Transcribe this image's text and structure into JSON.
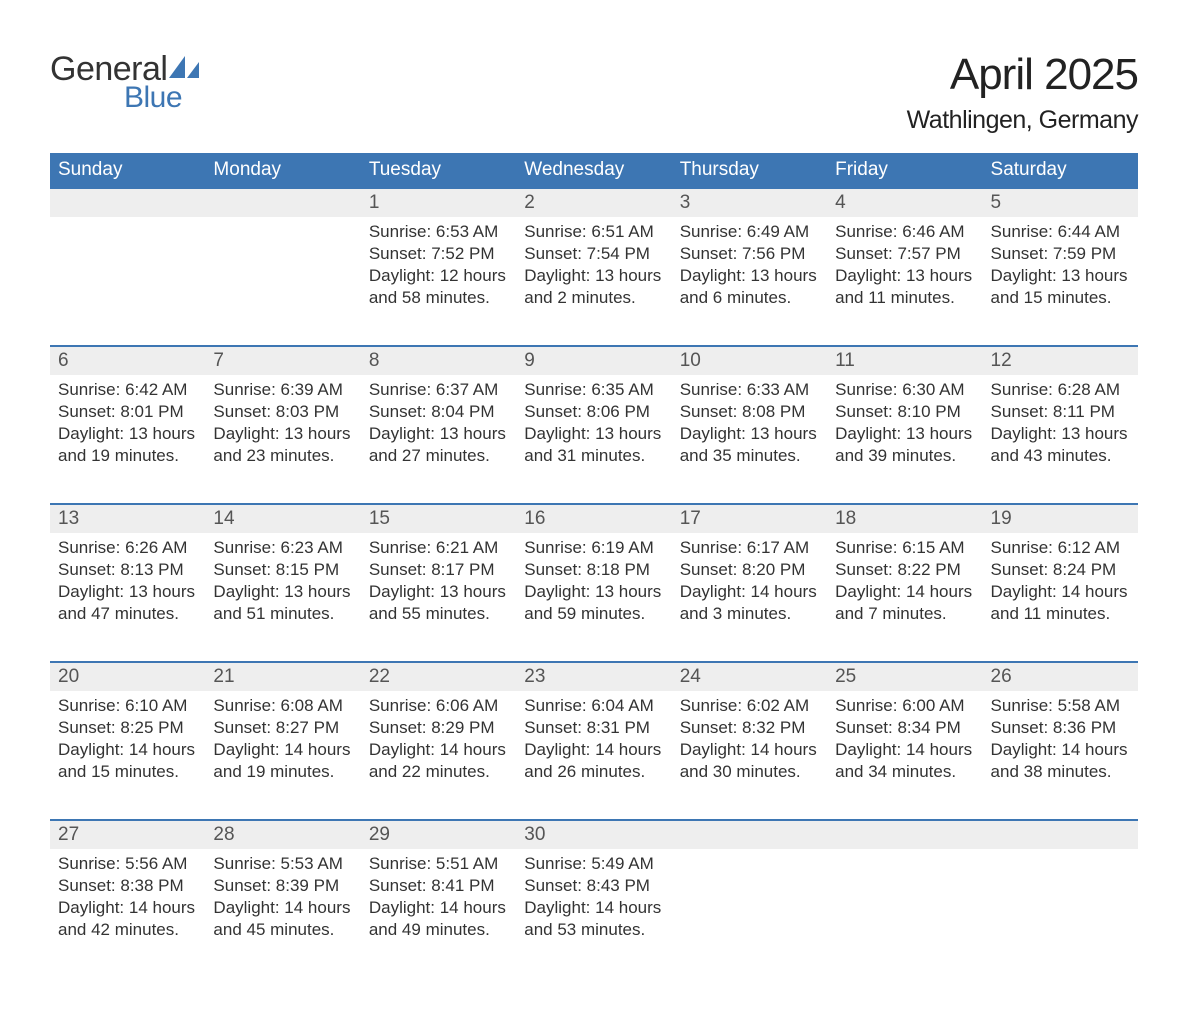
{
  "logo": {
    "word1": "General",
    "word2": "Blue",
    "mark_color": "#3d76b3",
    "text1_color": "#333333",
    "text2_color": "#3d76b3"
  },
  "title": "April 2025",
  "location": "Wathlingen, Germany",
  "colors": {
    "header_bg": "#3d76b3",
    "header_text": "#ffffff",
    "daynum_bg": "#eeeeee",
    "row_border": "#3d76b3",
    "body_text": "#333333",
    "page_bg": "#ffffff"
  },
  "typography": {
    "title_fontsize": 44,
    "location_fontsize": 25,
    "header_fontsize": 19,
    "daynum_fontsize": 19,
    "body_fontsize": 17
  },
  "day_headers": [
    "Sunday",
    "Monday",
    "Tuesday",
    "Wednesday",
    "Thursday",
    "Friday",
    "Saturday"
  ],
  "weeks": [
    [
      {
        "n": "",
        "sr": "",
        "ss": "",
        "dl": ""
      },
      {
        "n": "",
        "sr": "",
        "ss": "",
        "dl": ""
      },
      {
        "n": "1",
        "sr": "Sunrise: 6:53 AM",
        "ss": "Sunset: 7:52 PM",
        "dl": "Daylight: 12 hours and 58 minutes."
      },
      {
        "n": "2",
        "sr": "Sunrise: 6:51 AM",
        "ss": "Sunset: 7:54 PM",
        "dl": "Daylight: 13 hours and 2 minutes."
      },
      {
        "n": "3",
        "sr": "Sunrise: 6:49 AM",
        "ss": "Sunset: 7:56 PM",
        "dl": "Daylight: 13 hours and 6 minutes."
      },
      {
        "n": "4",
        "sr": "Sunrise: 6:46 AM",
        "ss": "Sunset: 7:57 PM",
        "dl": "Daylight: 13 hours and 11 minutes."
      },
      {
        "n": "5",
        "sr": "Sunrise: 6:44 AM",
        "ss": "Sunset: 7:59 PM",
        "dl": "Daylight: 13 hours and 15 minutes."
      }
    ],
    [
      {
        "n": "6",
        "sr": "Sunrise: 6:42 AM",
        "ss": "Sunset: 8:01 PM",
        "dl": "Daylight: 13 hours and 19 minutes."
      },
      {
        "n": "7",
        "sr": "Sunrise: 6:39 AM",
        "ss": "Sunset: 8:03 PM",
        "dl": "Daylight: 13 hours and 23 minutes."
      },
      {
        "n": "8",
        "sr": "Sunrise: 6:37 AM",
        "ss": "Sunset: 8:04 PM",
        "dl": "Daylight: 13 hours and 27 minutes."
      },
      {
        "n": "9",
        "sr": "Sunrise: 6:35 AM",
        "ss": "Sunset: 8:06 PM",
        "dl": "Daylight: 13 hours and 31 minutes."
      },
      {
        "n": "10",
        "sr": "Sunrise: 6:33 AM",
        "ss": "Sunset: 8:08 PM",
        "dl": "Daylight: 13 hours and 35 minutes."
      },
      {
        "n": "11",
        "sr": "Sunrise: 6:30 AM",
        "ss": "Sunset: 8:10 PM",
        "dl": "Daylight: 13 hours and 39 minutes."
      },
      {
        "n": "12",
        "sr": "Sunrise: 6:28 AM",
        "ss": "Sunset: 8:11 PM",
        "dl": "Daylight: 13 hours and 43 minutes."
      }
    ],
    [
      {
        "n": "13",
        "sr": "Sunrise: 6:26 AM",
        "ss": "Sunset: 8:13 PM",
        "dl": "Daylight: 13 hours and 47 minutes."
      },
      {
        "n": "14",
        "sr": "Sunrise: 6:23 AM",
        "ss": "Sunset: 8:15 PM",
        "dl": "Daylight: 13 hours and 51 minutes."
      },
      {
        "n": "15",
        "sr": "Sunrise: 6:21 AM",
        "ss": "Sunset: 8:17 PM",
        "dl": "Daylight: 13 hours and 55 minutes."
      },
      {
        "n": "16",
        "sr": "Sunrise: 6:19 AM",
        "ss": "Sunset: 8:18 PM",
        "dl": "Daylight: 13 hours and 59 minutes."
      },
      {
        "n": "17",
        "sr": "Sunrise: 6:17 AM",
        "ss": "Sunset: 8:20 PM",
        "dl": "Daylight: 14 hours and 3 minutes."
      },
      {
        "n": "18",
        "sr": "Sunrise: 6:15 AM",
        "ss": "Sunset: 8:22 PM",
        "dl": "Daylight: 14 hours and 7 minutes."
      },
      {
        "n": "19",
        "sr": "Sunrise: 6:12 AM",
        "ss": "Sunset: 8:24 PM",
        "dl": "Daylight: 14 hours and 11 minutes."
      }
    ],
    [
      {
        "n": "20",
        "sr": "Sunrise: 6:10 AM",
        "ss": "Sunset: 8:25 PM",
        "dl": "Daylight: 14 hours and 15 minutes."
      },
      {
        "n": "21",
        "sr": "Sunrise: 6:08 AM",
        "ss": "Sunset: 8:27 PM",
        "dl": "Daylight: 14 hours and 19 minutes."
      },
      {
        "n": "22",
        "sr": "Sunrise: 6:06 AM",
        "ss": "Sunset: 8:29 PM",
        "dl": "Daylight: 14 hours and 22 minutes."
      },
      {
        "n": "23",
        "sr": "Sunrise: 6:04 AM",
        "ss": "Sunset: 8:31 PM",
        "dl": "Daylight: 14 hours and 26 minutes."
      },
      {
        "n": "24",
        "sr": "Sunrise: 6:02 AM",
        "ss": "Sunset: 8:32 PM",
        "dl": "Daylight: 14 hours and 30 minutes."
      },
      {
        "n": "25",
        "sr": "Sunrise: 6:00 AM",
        "ss": "Sunset: 8:34 PM",
        "dl": "Daylight: 14 hours and 34 minutes."
      },
      {
        "n": "26",
        "sr": "Sunrise: 5:58 AM",
        "ss": "Sunset: 8:36 PM",
        "dl": "Daylight: 14 hours and 38 minutes."
      }
    ],
    [
      {
        "n": "27",
        "sr": "Sunrise: 5:56 AM",
        "ss": "Sunset: 8:38 PM",
        "dl": "Daylight: 14 hours and 42 minutes."
      },
      {
        "n": "28",
        "sr": "Sunrise: 5:53 AM",
        "ss": "Sunset: 8:39 PM",
        "dl": "Daylight: 14 hours and 45 minutes."
      },
      {
        "n": "29",
        "sr": "Sunrise: 5:51 AM",
        "ss": "Sunset: 8:41 PM",
        "dl": "Daylight: 14 hours and 49 minutes."
      },
      {
        "n": "30",
        "sr": "Sunrise: 5:49 AM",
        "ss": "Sunset: 8:43 PM",
        "dl": "Daylight: 14 hours and 53 minutes."
      },
      {
        "n": "",
        "sr": "",
        "ss": "",
        "dl": ""
      },
      {
        "n": "",
        "sr": "",
        "ss": "",
        "dl": ""
      },
      {
        "n": "",
        "sr": "",
        "ss": "",
        "dl": ""
      }
    ]
  ]
}
